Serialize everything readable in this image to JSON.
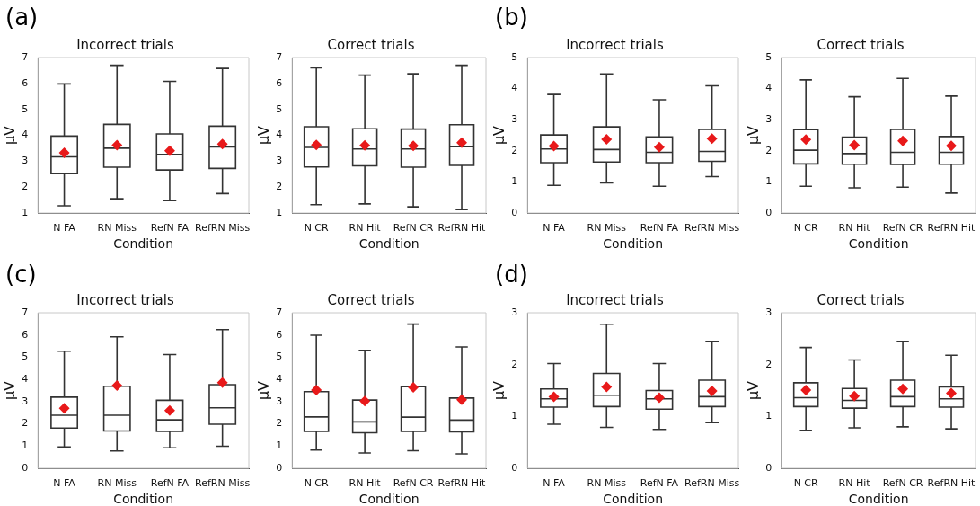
{
  "chart_data": [
    {
      "type": "box",
      "title": "Incorrect trials",
      "xlabel": "Condition",
      "ylabel": "µV",
      "annotations": [
        "(a)"
      ],
      "categories": [
        "N FA",
        "RN Miss",
        "RefN FA",
        "RefRN Miss"
      ],
      "ylim": [
        1,
        7
      ],
      "yticks": [
        1,
        2,
        3,
        4,
        5,
        6,
        7
      ],
      "grid": false,
      "legend": false,
      "marker": "diamond",
      "series": [
        {
          "color": "#333333",
          "boxes": [
            {
              "low": 1.28,
              "q1": 2.52,
              "median": 3.17,
              "q3": 3.97,
              "high": 5.98,
              "mean": 3.32
            },
            {
              "low": 1.55,
              "q1": 2.77,
              "median": 3.5,
              "q3": 4.42,
              "high": 6.7,
              "mean": 3.62
            },
            {
              "low": 1.48,
              "q1": 2.66,
              "median": 3.26,
              "q3": 4.05,
              "high": 6.08,
              "mean": 3.4
            },
            {
              "low": 1.75,
              "q1": 2.72,
              "median": 3.55,
              "q3": 4.35,
              "high": 6.58,
              "mean": 3.66
            }
          ]
        }
      ]
    },
    {
      "type": "box",
      "title": "Correct trials",
      "xlabel": "Condition",
      "ylabel": "µV",
      "categories": [
        "N CR",
        "RN Hit",
        "RefN CR",
        "RefRN Hit"
      ],
      "ylim": [
        1,
        7
      ],
      "yticks": [
        1,
        2,
        3,
        4,
        5,
        6,
        7
      ],
      "grid": false,
      "legend": false,
      "marker": "diamond",
      "series": [
        {
          "color": "#333333",
          "boxes": [
            {
              "low": 1.32,
              "q1": 2.78,
              "median": 3.53,
              "q3": 4.33,
              "high": 6.6,
              "mean": 3.63
            },
            {
              "low": 1.35,
              "q1": 2.82,
              "median": 3.47,
              "q3": 4.25,
              "high": 6.32,
              "mean": 3.61
            },
            {
              "low": 1.24,
              "q1": 2.77,
              "median": 3.47,
              "q3": 4.24,
              "high": 6.37,
              "mean": 3.59
            },
            {
              "low": 1.13,
              "q1": 2.84,
              "median": 3.56,
              "q3": 4.41,
              "high": 6.7,
              "mean": 3.71
            }
          ]
        }
      ]
    },
    {
      "type": "box",
      "title": "Incorrect trials",
      "xlabel": "Condition",
      "ylabel": "µV",
      "annotations": [
        "(b)"
      ],
      "categories": [
        "N FA",
        "RN Miss",
        "RefN FA",
        "RefRN Miss"
      ],
      "ylim": [
        0,
        5
      ],
      "yticks": [
        0,
        1,
        2,
        3,
        4,
        5
      ],
      "grid": false,
      "legend": false,
      "marker": "diamond",
      "series": [
        {
          "color": "#333333",
          "boxes": [
            {
              "low": 0.89,
              "q1": 1.62,
              "median": 2.06,
              "q3": 2.51,
              "high": 3.81,
              "mean": 2.15
            },
            {
              "low": 0.97,
              "q1": 1.64,
              "median": 2.04,
              "q3": 2.77,
              "high": 4.47,
              "mean": 2.37
            },
            {
              "low": 0.86,
              "q1": 1.62,
              "median": 1.95,
              "q3": 2.45,
              "high": 3.64,
              "mean": 2.12
            },
            {
              "low": 1.17,
              "q1": 1.66,
              "median": 1.98,
              "q3": 2.69,
              "high": 4.09,
              "mean": 2.39
            }
          ]
        }
      ]
    },
    {
      "type": "box",
      "title": "Correct trials",
      "xlabel": "Condition",
      "ylabel": "µV",
      "categories": [
        "N CR",
        "RN Hit",
        "RefN CR",
        "RefRN Hit"
      ],
      "ylim": [
        0,
        5
      ],
      "yticks": [
        0,
        1,
        2,
        3,
        4,
        5
      ],
      "grid": false,
      "legend": false,
      "marker": "diamond",
      "series": [
        {
          "color": "#333333",
          "boxes": [
            {
              "low": 0.86,
              "q1": 1.58,
              "median": 2.02,
              "q3": 2.68,
              "high": 4.28,
              "mean": 2.36
            },
            {
              "low": 0.81,
              "q1": 1.57,
              "median": 1.91,
              "q3": 2.44,
              "high": 3.74,
              "mean": 2.18
            },
            {
              "low": 0.83,
              "q1": 1.56,
              "median": 1.95,
              "q3": 2.69,
              "high": 4.33,
              "mean": 2.32
            },
            {
              "low": 0.64,
              "q1": 1.57,
              "median": 1.95,
              "q3": 2.46,
              "high": 3.76,
              "mean": 2.16
            }
          ]
        }
      ]
    },
    {
      "type": "box",
      "title": "Incorrect trials",
      "xlabel": "Condition",
      "ylabel": "µV",
      "annotations": [
        "(c)"
      ],
      "categories": [
        "N FA",
        "RN Miss",
        "RefN FA",
        "RefRN Miss"
      ],
      "ylim": [
        0,
        7
      ],
      "yticks": [
        0,
        1,
        2,
        3,
        4,
        5,
        6,
        7
      ],
      "grid": false,
      "legend": false,
      "marker": "diamond",
      "series": [
        {
          "color": "#333333",
          "boxes": [
            {
              "low": 0.96,
              "q1": 1.81,
              "median": 2.39,
              "q3": 3.2,
              "high": 5.27,
              "mean": 2.7
            },
            {
              "low": 0.78,
              "q1": 1.68,
              "median": 2.39,
              "q3": 3.69,
              "high": 5.92,
              "mean": 3.72
            },
            {
              "low": 0.92,
              "q1": 1.66,
              "median": 2.18,
              "q3": 3.06,
              "high": 5.12,
              "mean": 2.6
            },
            {
              "low": 0.99,
              "q1": 1.98,
              "median": 2.72,
              "q3": 3.76,
              "high": 6.24,
              "mean": 3.85
            }
          ]
        }
      ]
    },
    {
      "type": "box",
      "title": "Correct trials",
      "xlabel": "Condition",
      "ylabel": "µV",
      "categories": [
        "N CR",
        "RN Hit",
        "RefN CR",
        "RefRN Hit"
      ],
      "ylim": [
        0,
        7
      ],
      "yticks": [
        0,
        1,
        2,
        3,
        4,
        5,
        6,
        7
      ],
      "grid": false,
      "legend": false,
      "marker": "diamond",
      "series": [
        {
          "color": "#333333",
          "boxes": [
            {
              "low": 0.82,
              "q1": 1.66,
              "median": 2.31,
              "q3": 3.45,
              "high": 5.99,
              "mean": 3.52
            },
            {
              "low": 0.69,
              "q1": 1.6,
              "median": 2.09,
              "q3": 3.07,
              "high": 5.31,
              "mean": 3.02
            },
            {
              "low": 0.79,
              "q1": 1.66,
              "median": 2.3,
              "q3": 3.67,
              "high": 6.49,
              "mean": 3.64
            },
            {
              "low": 0.65,
              "q1": 1.64,
              "median": 2.17,
              "q3": 3.16,
              "high": 5.46,
              "mean": 3.09
            }
          ]
        }
      ]
    },
    {
      "type": "box",
      "title": "Incorrect trials",
      "xlabel": "Condition",
      "ylabel": "µV",
      "annotations": [
        "(d)"
      ],
      "categories": [
        "N FA",
        "RN Miss",
        "RefN FA",
        "RefRN Miss"
      ],
      "ylim": [
        0,
        3
      ],
      "yticks": [
        0,
        1,
        2,
        3
      ],
      "grid": false,
      "legend": false,
      "marker": "diamond",
      "series": [
        {
          "color": "#333333",
          "boxes": [
            {
              "low": 0.85,
              "q1": 1.18,
              "median": 1.34,
              "q3": 1.53,
              "high": 2.02,
              "mean": 1.38
            },
            {
              "low": 0.79,
              "q1": 1.19,
              "median": 1.41,
              "q3": 1.83,
              "high": 2.78,
              "mean": 1.57
            },
            {
              "low": 0.75,
              "q1": 1.14,
              "median": 1.34,
              "q3": 1.5,
              "high": 2.02,
              "mean": 1.36
            },
            {
              "low": 0.88,
              "q1": 1.19,
              "median": 1.38,
              "q3": 1.7,
              "high": 2.45,
              "mean": 1.49
            }
          ]
        }
      ]
    },
    {
      "type": "box",
      "title": "Correct trials",
      "xlabel": "Condition",
      "ylabel": "µV",
      "categories": [
        "N CR",
        "RN Hit",
        "RefN CR",
        "RefRN Hit"
      ],
      "ylim": [
        0,
        3
      ],
      "yticks": [
        0,
        1,
        2,
        3
      ],
      "grid": false,
      "legend": false,
      "marker": "diamond",
      "series": [
        {
          "color": "#333333",
          "boxes": [
            {
              "low": 0.73,
              "q1": 1.19,
              "median": 1.36,
              "q3": 1.65,
              "high": 2.33,
              "mean": 1.51
            },
            {
              "low": 0.78,
              "q1": 1.16,
              "median": 1.31,
              "q3": 1.54,
              "high": 2.09,
              "mean": 1.39
            },
            {
              "low": 0.8,
              "q1": 1.19,
              "median": 1.38,
              "q3": 1.7,
              "high": 2.45,
              "mean": 1.53
            },
            {
              "low": 0.76,
              "q1": 1.18,
              "median": 1.34,
              "q3": 1.57,
              "high": 2.18,
              "mean": 1.45
            }
          ]
        }
      ]
    }
  ]
}
